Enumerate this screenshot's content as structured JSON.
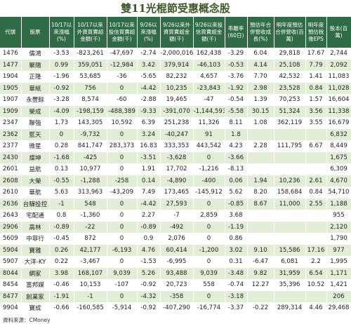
{
  "title": "雙11光棍節受惠概念股",
  "table": {
    "header": [
      "代號",
      "股票",
      "10/17以來漲幅(%)",
      "10/17以來外資買賣超金額(千)",
      "10/17以來投信買賣超金額(千)",
      "9/26以來漲幅(%)",
      "9/26以來外資買賣超金額(千)",
      "9/26以來投信買賣超金額(千)",
      "乖離率(60日)",
      "預估年合併營收成長(%)",
      "明年度預估合併營收(百萬)",
      "明年度預估稅後EPS",
      "股本(百萬)"
    ],
    "rows": [
      [
        "1476",
        "儒鴻",
        "-3.53",
        "-823,261",
        "-47,697",
        "-2.74",
        "-2,000,016",
        "162,438",
        "-3.29",
        "6.04",
        "29,818",
        "17.67",
        "2,744"
      ],
      [
        "1477",
        "聚陽",
        "0.99",
        "359,051",
        "-12,984",
        "3.42",
        "379,914",
        "-46,103",
        "-0.53",
        "4.14",
        "25,108",
        "7.79",
        "2,092"
      ],
      [
        "1904",
        "正隆",
        "-1.96",
        "53,685",
        "-36",
        "-5.65",
        "82,232",
        "4,657",
        "-3.76",
        "7.70",
        "42,532",
        "1.41",
        "11,083"
      ],
      [
        "1905",
        "華紙",
        "-0.92",
        "756",
        "0",
        "-4.42",
        "10,235",
        "-23,843",
        "-1.92",
        "2.98",
        "23,528",
        "0.84",
        "11,028"
      ],
      [
        "1907",
        "永豐餘",
        "-3.28",
        "8,574",
        "-60",
        "-2.88",
        "19,465",
        "-47",
        "-0.54",
        "1.39",
        "70,253",
        "1.57",
        "16,604"
      ],
      [
        "1909",
        "榮成",
        "-4.09",
        "-198,159",
        "-488,389",
        "-9.33",
        "-391,070",
        "-1,144,593",
        "-5.58",
        "30.15",
        "51,324",
        "3.56",
        "11,338"
      ],
      [
        "2347",
        "聯強",
        "1.73",
        "143,305",
        "10,592",
        "6.39",
        "251,238",
        "11,326",
        "8.11",
        "1.08",
        "362,119",
        "3.55",
        "16,679"
      ],
      [
        "2362",
        "藍天",
        "0",
        "-9,732",
        "0",
        "3.24",
        "-40,247",
        "91",
        "1.8",
        null,
        null,
        null,
        "6,832"
      ],
      [
        "2377",
        "微星",
        "0.28",
        "841,747",
        "283,373",
        "16.83",
        "333,353",
        "443,542",
        "4.23",
        "2.28",
        "111,795",
        "6.67",
        "8,449"
      ],
      [
        "2430",
        "燦坤",
        "-1.68",
        "-425",
        "0",
        "-3.51",
        "-3,628",
        "0",
        "-3.66",
        null,
        null,
        null,
        "1,675"
      ],
      [
        "2601",
        "益航",
        "0.13",
        "10,977",
        "0",
        "1.91",
        "17,702",
        "-1,216",
        "-8.13",
        null,
        null,
        null,
        "6,309"
      ],
      [
        "2608",
        "大榮",
        "-0.55",
        "-1,288",
        "-258",
        "0.14",
        "-4,890",
        "-400",
        "0.06",
        "1.94",
        "10,236",
        "2.61",
        "4,670"
      ],
      [
        "2610",
        "華航",
        "5.63",
        "313,963",
        "-43,209",
        "7.49",
        "173,465",
        "-145,912",
        "5.62",
        "8.20",
        "158,684",
        "0.84",
        "54,710"
      ],
      [
        "2636",
        "台驊投控",
        "-1",
        "548",
        "0",
        "-4.42",
        "27,593",
        "0",
        "-0.85",
        "8.67",
        "11,000",
        "2.55",
        "1,188"
      ],
      [
        "2643",
        "宅配通",
        "0.8",
        "-1,360",
        "0",
        "2.27",
        "-7",
        "2,859",
        "3.68",
        null,
        null,
        null,
        "955"
      ],
      [
        "2906",
        "高林",
        "-0.89",
        "-22",
        "0",
        "-0.89",
        "-492",
        "0",
        "-1.19",
        null,
        null,
        null,
        "2,120"
      ],
      [
        "5609",
        "中菲行",
        "-0.45",
        "872",
        "0",
        "0.9",
        "2,076",
        "0",
        "0.86",
        null,
        null,
        null,
        "1,790"
      ],
      [
        "5904",
        "寶雅",
        "0.26",
        "42,177",
        "-6,193",
        "4.76",
        "60,414",
        "-1,200",
        "3.02",
        "9.10",
        "15,586",
        "17.16",
        "977"
      ],
      [
        "5907",
        "大洋-KY",
        "0.22",
        "-3,467",
        "0",
        "-1.53",
        "-6,995",
        "0",
        "0.31",
        "-6.47",
        "6,081",
        "2.2",
        "1,995"
      ],
      [
        "8044",
        "網家",
        "3.98",
        "168,107",
        "9,039",
        "5.26",
        "93,488",
        "9,039",
        "-3.48",
        "9.82",
        "31,959",
        "6.54",
        "1,171"
      ],
      [
        "8454",
        "富邦媒",
        "-0.46",
        "10,153",
        "-107",
        "-0.92",
        "20,723",
        "558",
        "-0.74",
        "12.27",
        "35,396",
        "10.52",
        "1,421"
      ],
      [
        "8477",
        "創業家",
        "-1.91",
        "-1",
        "0",
        "-4.32",
        "-358",
        "0",
        "-3.18",
        null,
        null,
        null,
        "206"
      ],
      [
        "9904",
        "寶成",
        "-0.66",
        "-160,585",
        "-5,914",
        "-0.92",
        "-407,290",
        "-16,774",
        "-3.37",
        "-0.22",
        "289,314",
        "4.46",
        "29,468"
      ]
    ]
  },
  "footer": "資料來源：CMoney"
}
